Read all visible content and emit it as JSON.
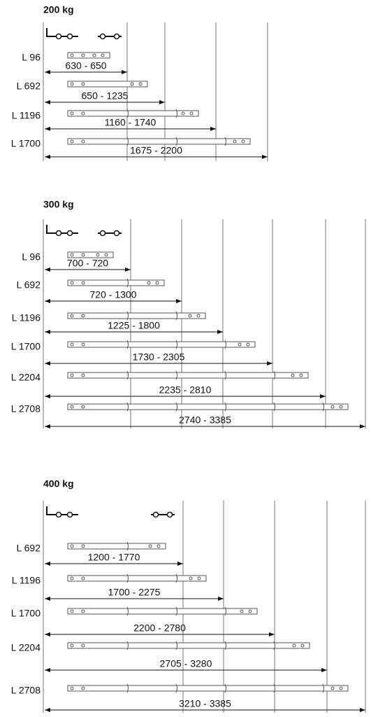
{
  "sections": [
    {
      "title": "200 kg",
      "rows": [
        {
          "label": "L 96",
          "range": "630 - 650"
        },
        {
          "label": "L 692",
          "range": "650 - 1235"
        },
        {
          "label": "L 1196",
          "range": "1160 - 1740"
        },
        {
          "label": "L 1700",
          "range": "1675 - 2200"
        }
      ]
    },
    {
      "title": "300 kg",
      "rows": [
        {
          "label": "L 96",
          "range": "700 - 720"
        },
        {
          "label": "L 692",
          "range": "720 - 1300"
        },
        {
          "label": "L 1196",
          "range": "1225 - 1800"
        },
        {
          "label": "L 1700",
          "range": "1730 - 2305"
        },
        {
          "label": "L 2204",
          "range": "2235 - 2810"
        },
        {
          "label": "L 2708",
          "range": "2740 - 3385"
        }
      ]
    },
    {
      "title": "400 kg",
      "rows": [
        {
          "label": "L 692",
          "range": "1200 - 1770"
        },
        {
          "label": "L 1196",
          "range": "1700 - 2275"
        },
        {
          "label": "L 1700",
          "range": "2200 - 2780"
        },
        {
          "label": "L 2204",
          "range": "2705 - 3280"
        },
        {
          "label": "L 2708",
          "range": "3210 - 3385"
        }
      ]
    }
  ]
}
